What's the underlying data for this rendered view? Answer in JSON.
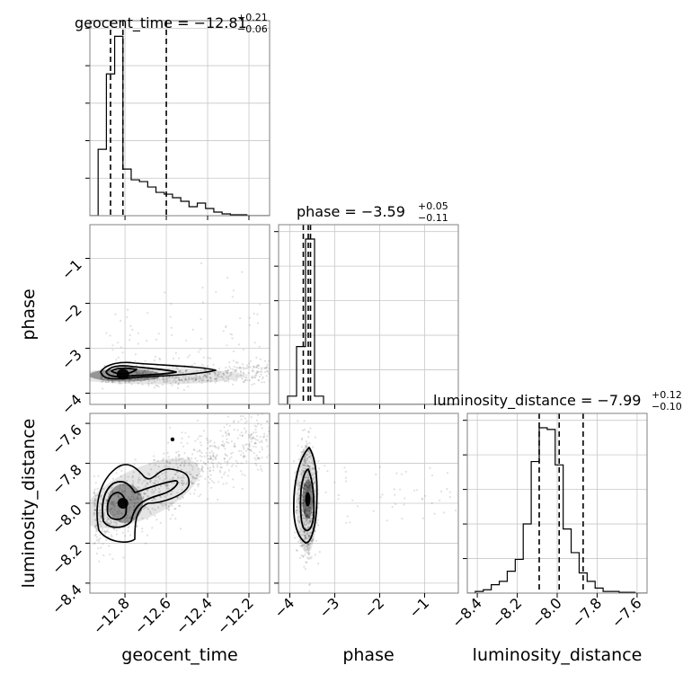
{
  "chart_data": {
    "type": "corner",
    "parameters": [
      {
        "name": "geocent_time",
        "range": [
          -12.97,
          -12.1
        ],
        "ticks": [
          -12.8,
          -12.6,
          -12.4,
          -12.2
        ],
        "tick_labels": [
          "−12.8",
          "−12.6",
          "−12.4",
          "−12.2"
        ]
      },
      {
        "name": "phase",
        "range": [
          -4.25,
          -0.25
        ],
        "ticks": [
          -4,
          -3,
          -2,
          -1
        ],
        "tick_labels": [
          "−4",
          "−3",
          "−2",
          "−1"
        ]
      },
      {
        "name": "luminosity_distance",
        "range": [
          -8.45,
          -7.55
        ],
        "ticks": [
          -8.4,
          -8.2,
          -8.0,
          -7.8,
          -7.6
        ],
        "tick_labels": [
          "−8.4",
          "−8.2",
          "−8.0",
          "−7.8",
          "−7.6"
        ]
      }
    ],
    "titles": [
      {
        "param": "geocent_time",
        "main": "geocent_time = −12.81",
        "plus": "+0.21",
        "minus": "−0.06"
      },
      {
        "param": "phase",
        "main": "phase = −3.59",
        "plus": "+0.05",
        "minus": "−0.11"
      },
      {
        "param": "luminosity_distance",
        "main": "luminosity_distance = −7.99",
        "plus": "+0.12",
        "minus": "−0.10"
      }
    ],
    "histograms": [
      {
        "param": "geocent_time",
        "bin_start": -12.97,
        "bin_width": 0.04,
        "counts": [
          0,
          0.37,
          0.79,
          1.0,
          0.26,
          0.2,
          0.19,
          0.16,
          0.13,
          0.12,
          0.1,
          0.08,
          0.05,
          0.07,
          0.04,
          0.02,
          0.01,
          0.005,
          0.005,
          0.0,
          0.0,
          0.0
        ],
        "quantiles": [
          -12.87,
          -12.81,
          -12.6
        ]
      },
      {
        "param": "phase",
        "bin_start": -4.25,
        "bin_width": 0.2,
        "counts": [
          0,
          0.05,
          0.35,
          1.0,
          0.05,
          0.0,
          0.0,
          0.0,
          0.0,
          0.0,
          0.0,
          0.0,
          0.0,
          0.0,
          0.0,
          0.0,
          0.0,
          0.0,
          0.0,
          0.0
        ],
        "quantiles": [
          -3.7,
          -3.59,
          -3.54
        ]
      },
      {
        "param": "luminosity_distance",
        "bin_start": -8.45,
        "bin_width": 0.04,
        "counts": [
          0,
          0.01,
          0.02,
          0.05,
          0.07,
          0.13,
          0.2,
          0.41,
          0.78,
          0.98,
          0.97,
          0.76,
          0.38,
          0.24,
          0.12,
          0.07,
          0.03,
          0.01,
          0.01,
          0.005,
          0.005,
          0.0,
          0.0
        ],
        "quantiles": [
          -8.09,
          -7.99,
          -7.87
        ]
      }
    ],
    "pairs": [
      {
        "x": "geocent_time",
        "y": "phase",
        "center": [
          -12.81,
          -3.59
        ]
      },
      {
        "x": "geocent_time",
        "y": "luminosity_distance",
        "center": [
          -12.81,
          -8.0
        ]
      },
      {
        "x": "phase",
        "y": "luminosity_distance",
        "center": [
          -3.6,
          -7.98
        ]
      }
    ],
    "grid": true
  }
}
